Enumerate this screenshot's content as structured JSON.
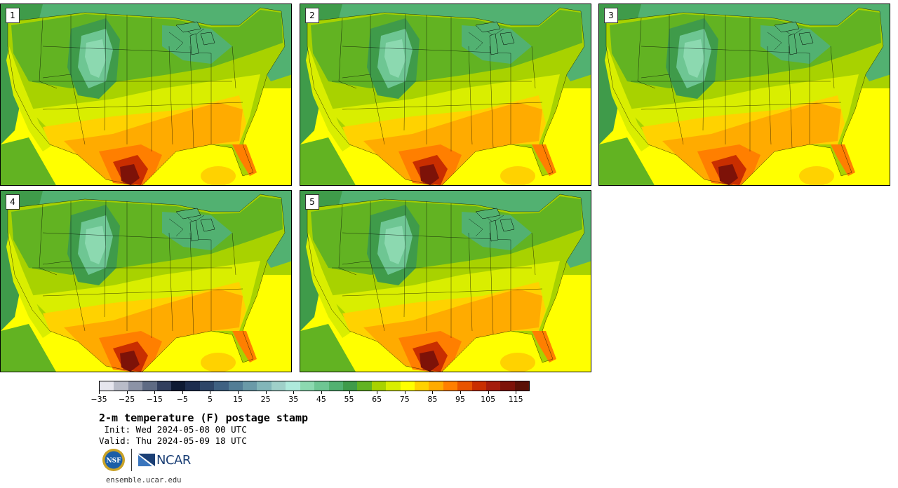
{
  "panels": [
    {
      "label": "1"
    },
    {
      "label": "2"
    },
    {
      "label": "3"
    },
    {
      "label": "4"
    },
    {
      "label": "5"
    }
  ],
  "colorbar": {
    "colors": [
      "#e6e6ee",
      "#b9bcc8",
      "#8c93a6",
      "#5f6b84",
      "#323f5e",
      "#0e1a33",
      "#1d2d4e",
      "#2e4668",
      "#3f6182",
      "#527d96",
      "#6a9aa8",
      "#82b6b9",
      "#9fd0c9",
      "#aeeadc",
      "#8cd9b0",
      "#6ec693",
      "#52b171",
      "#3f9b4a",
      "#62b322",
      "#a8d200",
      "#d9ee00",
      "#ffff00",
      "#ffd200",
      "#ffab00",
      "#ff7f00",
      "#e85400",
      "#c92e00",
      "#a51c0c",
      "#7d1208",
      "#5a1006"
    ],
    "tick_values": [
      "−35",
      "−25",
      "−15",
      "−5",
      "5",
      "15",
      "25",
      "35",
      "45",
      "55",
      "65",
      "75",
      "85",
      "95",
      "105",
      "115"
    ],
    "min": -35,
    "max": 115,
    "step": 10
  },
  "title": "2-m temperature (F) postage stamp",
  "init_line": " Init: Wed 2024-05-08 00 UTC",
  "valid_line": "Valid: Thu 2024-05-09 18 UTC",
  "logos": {
    "left": "NSF",
    "right": "NCAR"
  },
  "site": "ensemble.ucar.edu"
}
